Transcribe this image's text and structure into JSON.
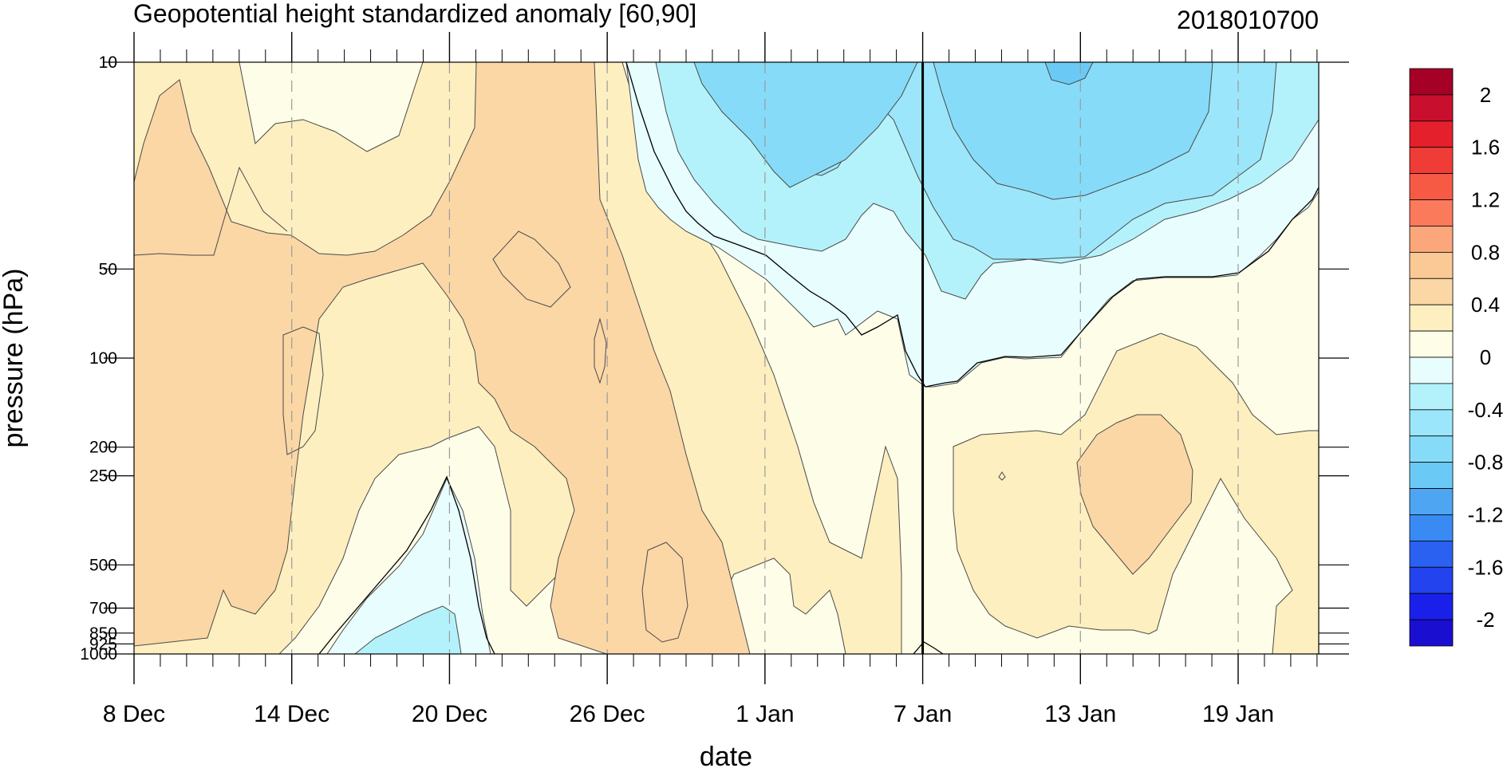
{
  "chart_data": {
    "type": "heatmap",
    "title": "Geopotential height standardized anomaly [60,90]",
    "subtitle": "2018010700",
    "xlabel": "date",
    "ylabel": "pressure (hPa)",
    "x_ticks": [
      "8 Dec",
      "14 Dec",
      "20 Dec",
      "26 Dec",
      "1 Jan",
      "7 Jan",
      "13 Jan",
      "19 Jan"
    ],
    "x_tick_days": [
      0,
      6,
      12,
      18,
      24,
      30,
      36,
      42
    ],
    "x_range_days": [
      0,
      45
    ],
    "minor_tick_step_days": 1,
    "y_ticks": [
      "10",
      "50",
      "100",
      "200",
      "250",
      "500",
      "700",
      "850",
      "925",
      "1000"
    ],
    "y_tick_values": [
      10,
      50,
      100,
      200,
      250,
      500,
      700,
      850,
      925,
      1000
    ],
    "ylim": [
      1000,
      10
    ],
    "y_scale": "log",
    "grid": "dashed vertical lines at labeled dates",
    "marker_line_day": 30,
    "colorbar": {
      "labels": [
        "2",
        "1.6",
        "1.2",
        "0.8",
        "0.4",
        "0",
        "-0.4",
        "-0.8",
        "-1.2",
        "-1.6",
        "-2"
      ],
      "label_values": [
        2,
        1.6,
        1.2,
        0.8,
        0.4,
        0,
        -0.4,
        -0.8,
        -1.2,
        -1.6,
        -2
      ],
      "boundaries": [
        2.2,
        2.0,
        1.8,
        1.6,
        1.4,
        1.2,
        1.0,
        0.8,
        0.6,
        0.4,
        0.2,
        0,
        -0.2,
        -0.4,
        -0.6,
        -0.8,
        -1.0,
        -1.2,
        -1.4,
        -1.6,
        -1.8,
        -2.0,
        -2.2
      ],
      "colors": [
        "#a50026",
        "#c8102e",
        "#e4202c",
        "#f03c37",
        "#f65a45",
        "#fb7a5c",
        "#fba67b",
        "#fbc995",
        "#fbd7a6",
        "#fdefc0",
        "#fefde8",
        "#e8fdfe",
        "#b4f2fb",
        "#9be6fa",
        "#86dcf8",
        "#6bcaf5",
        "#4ea6f3",
        "#3a8af3",
        "#2b61f1",
        "#2243ee",
        "#1a20ea",
        "#1a0ed0"
      ]
    },
    "fields": {
      "background_color": "#fefde8",
      "shade_04_color": "#fdefc0",
      "shade_06_color": "#fbd7a6",
      "neg_0_02_color": "#e8fdfe",
      "neg_02_04_color": "#b4f2fb",
      "neg_04_06_color": "#9be6fa",
      "neg_06_08_color": "#86dcf8"
    }
  }
}
